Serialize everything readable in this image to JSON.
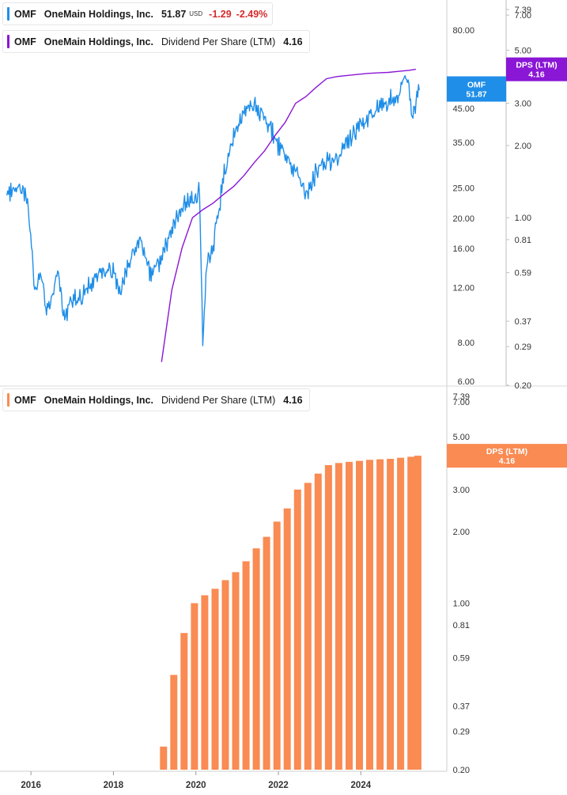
{
  "legend_top": {
    "ticker": "OMF",
    "company": "OneMain Holdings, Inc.",
    "price": "51.87",
    "currency": "USD",
    "change": "-1.29",
    "change_pct": "-2.49%",
    "color": "#1f8ee8"
  },
  "legend_dps_top": {
    "ticker": "OMF",
    "company": "OneMain Holdings, Inc.",
    "metric": "Dividend Per Share (LTM)",
    "value": "4.16",
    "color": "#8a16d6"
  },
  "legend_dps_bottom": {
    "ticker": "OMF",
    "company": "OneMain Holdings, Inc.",
    "metric": "Dividend Per Share (LTM)",
    "value": "4.16",
    "color": "#f98b53"
  },
  "flags": {
    "price_name": "OMF",
    "price_value": "51.87",
    "dps_name_top": "DPS (LTM)",
    "dps_value_top": "4.16",
    "dps_name_bottom": "DPS (LTM)",
    "dps_value_bottom": "4.16"
  },
  "chart_data": [
    {
      "type": "line",
      "series": [
        {
          "name": "OMF",
          "axis": "price",
          "color": "#1f8ee8",
          "x": [
            "2015-06",
            "2015-09",
            "2015-12",
            "2016-02",
            "2016-04",
            "2016-06",
            "2016-09",
            "2016-11",
            "2016-12",
            "2017-03",
            "2017-06",
            "2017-09",
            "2017-12",
            "2018-03",
            "2018-06",
            "2018-09",
            "2018-12",
            "2019-03",
            "2019-06",
            "2019-09",
            "2019-12",
            "2020-02",
            "2020-03",
            "2020-04",
            "2020-06",
            "2020-09",
            "2020-12",
            "2021-03",
            "2021-06",
            "2021-09",
            "2021-12",
            "2022-03",
            "2022-06",
            "2022-09",
            "2022-10",
            "2022-12",
            "2023-03",
            "2023-06",
            "2023-09",
            "2023-12",
            "2024-03",
            "2024-06",
            "2024-09",
            "2024-12",
            "2025-01",
            "2025-03",
            "2025-04",
            "2025-06"
          ],
          "y": [
            24,
            25,
            24,
            12,
            13,
            10,
            13,
            9,
            11,
            11,
            12,
            13,
            14,
            12,
            15,
            17,
            13,
            15,
            18,
            22,
            23,
            25,
            8,
            14,
            16,
            27,
            37,
            44,
            46,
            42,
            36,
            31,
            28,
            24,
            25,
            28,
            30,
            31,
            35,
            38,
            42,
            45,
            47,
            49,
            57,
            53,
            42,
            51.87
          ]
        },
        {
          "name": "Dividend Per Share (LTM)",
          "axis": "dps",
          "color": "#8a16d6",
          "x": [
            "2019-03",
            "2019-06",
            "2019-09",
            "2019-12",
            "2020-03",
            "2020-06",
            "2020-09",
            "2020-12",
            "2021-03",
            "2021-06",
            "2021-09",
            "2021-12",
            "2022-03",
            "2022-06",
            "2022-09",
            "2022-12",
            "2023-03",
            "2023-06",
            "2023-09",
            "2023-12",
            "2024-03",
            "2024-06",
            "2024-09",
            "2024-12",
            "2025-03",
            "2025-05"
          ],
          "y": [
            0.25,
            0.5,
            0.75,
            1.0,
            1.08,
            1.15,
            1.25,
            1.35,
            1.5,
            1.7,
            1.9,
            2.2,
            2.5,
            3.0,
            3.2,
            3.5,
            3.8,
            3.88,
            3.92,
            3.96,
            4.0,
            4.02,
            4.04,
            4.08,
            4.12,
            4.16
          ]
        }
      ],
      "price_axis": {
        "scale": "log",
        "ticks": [
          "6.00",
          "8.00",
          "12.00",
          "16.00",
          "20.00",
          "25.00",
          "35.00",
          "45.00",
          "80.00"
        ],
        "range": [
          5.8,
          100
        ]
      },
      "dps_axis": {
        "scale": "log",
        "ticks": [
          "0.20",
          "0.29",
          "0.37",
          "0.59",
          "0.81",
          "1.00",
          "2.00",
          "3.00",
          "5.00",
          "7.00",
          "7.39"
        ],
        "range": [
          0.2,
          7.39
        ]
      },
      "grid": false
    },
    {
      "type": "bar",
      "series": [
        {
          "name": "Dividend Per Share (LTM)",
          "color": "#f98b53",
          "x": [
            "2019-03",
            "2019-06",
            "2019-09",
            "2019-12",
            "2020-03",
            "2020-06",
            "2020-09",
            "2020-12",
            "2021-03",
            "2021-06",
            "2021-09",
            "2021-12",
            "2022-03",
            "2022-06",
            "2022-09",
            "2022-12",
            "2023-03",
            "2023-06",
            "2023-09",
            "2023-12",
            "2024-03",
            "2024-06",
            "2024-09",
            "2024-12",
            "2025-03",
            "2025-05"
          ],
          "values": [
            0.25,
            0.5,
            0.75,
            1.0,
            1.08,
            1.15,
            1.25,
            1.35,
            1.5,
            1.7,
            1.9,
            2.2,
            2.5,
            3.0,
            3.2,
            3.5,
            3.8,
            3.88,
            3.92,
            3.96,
            4.0,
            4.02,
            4.04,
            4.08,
            4.12,
            4.16
          ]
        }
      ],
      "y_axis": {
        "scale": "log",
        "ticks": [
          "0.20",
          "0.29",
          "0.37",
          "0.59",
          "0.81",
          "1.00",
          "2.00",
          "3.00",
          "5.00",
          "7.00",
          "7.39"
        ],
        "range": [
          0.2,
          7.39
        ]
      },
      "x_ticks": [
        "2016",
        "2018",
        "2020",
        "2022",
        "2024"
      ],
      "grid": false
    }
  ]
}
